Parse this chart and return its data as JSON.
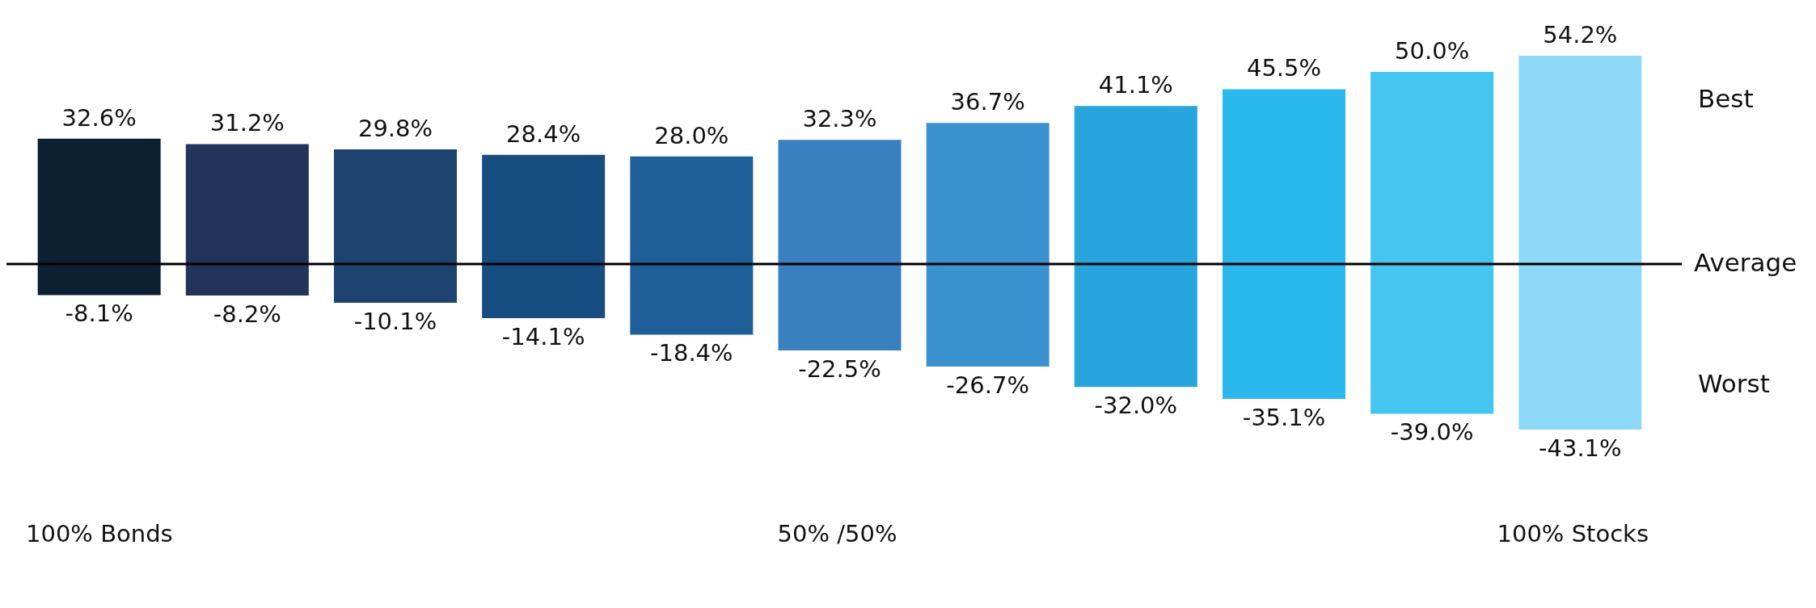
{
  "chart_data": {
    "type": "bar",
    "stacked": true,
    "categories": [
      null,
      null,
      null,
      null,
      null,
      null,
      null,
      null,
      null,
      null,
      null
    ],
    "series": [
      {
        "values": [
          32.6,
          31.2,
          29.8,
          28.4,
          28.0,
          32.3,
          36.7,
          41.1,
          45.5,
          50.0,
          54.2
        ],
        "value_labels": [
          "32.6%",
          "31.2%",
          "29.8%",
          "28.4%",
          "28.0%",
          "32.3%",
          "36.7%",
          "41.1%",
          "45.5%",
          "50.0%",
          "54.2%"
        ],
        "colors": [
          "#0d1f33",
          "#22335c",
          "#1d4471",
          "#174d80",
          "#1f5f99",
          "#3880c0",
          "#3c92d0",
          "#29a5dd",
          "#2bb8ec",
          "#45c6f0",
          "#8fd9f8"
        ]
      },
      {
        "values": [
          -8.1,
          -8.2,
          -10.1,
          -14.1,
          -18.4,
          -22.5,
          -26.7,
          -32.0,
          -35.1,
          -39.0,
          -43.1
        ],
        "value_labels": [
          "-8.1%",
          "-8.2%",
          "-10.1%",
          "-14.1%",
          "-18.4%",
          "-22.5%",
          "-26.7%",
          "-32.0%",
          "-35.1%",
          "-39.0%",
          "-43.1%"
        ],
        "colors": [
          "#0d1f33",
          "#22335c",
          "#1d4471",
          "#174d80",
          "#1f5f99",
          "#3880c0",
          "#3c92d0",
          "#29a5dd",
          "#2bb8ec",
          "#45c6f0",
          "#8fd9f8"
        ]
      }
    ],
    "tick_labels": false,
    "ref_lines": [
      {
        "axis": "y",
        "value": 0,
        "label": "Average",
        "color": "#000000"
      }
    ],
    "annotations": [
      "Best",
      "Worst",
      "100% Bonds",
      "50% /50%",
      "100% Stocks"
    ]
  }
}
